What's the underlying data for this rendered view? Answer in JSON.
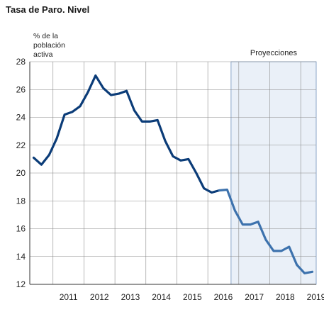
{
  "chart_data": {
    "type": "line",
    "title": "Tasa de Paro. Nivel",
    "ylabel": "% de la\npoblación\nactiva",
    "xlabel": "",
    "ylim": [
      12,
      28
    ],
    "yticks": [
      12,
      14,
      16,
      18,
      20,
      22,
      24,
      26,
      28
    ],
    "xlim": [
      2010.25,
      2019.5
    ],
    "xtick_labels": [
      "2011",
      "2012",
      "2013",
      "2014",
      "2015",
      "2016",
      "2017",
      "2018",
      "2019"
    ],
    "grid": true,
    "projection": {
      "label": "Proyecciones",
      "start": 2016.75,
      "end": 2019.5,
      "fill": "#eaf0f8"
    },
    "series": [
      {
        "color": "#0b3c78",
        "points": [
          [
            2010.375,
            21.1
          ],
          [
            2010.625,
            20.6
          ],
          [
            2010.875,
            21.3
          ],
          [
            2011.125,
            22.5
          ],
          [
            2011.375,
            24.2
          ],
          [
            2011.625,
            24.4
          ],
          [
            2011.875,
            24.8
          ],
          [
            2012.125,
            25.8
          ],
          [
            2012.375,
            27.0
          ],
          [
            2012.625,
            26.1
          ],
          [
            2012.875,
            25.6
          ],
          [
            2013.125,
            25.7
          ],
          [
            2013.375,
            25.9
          ],
          [
            2013.625,
            24.5
          ],
          [
            2013.875,
            23.7
          ],
          [
            2014.125,
            23.7
          ],
          [
            2014.375,
            23.8
          ],
          [
            2014.625,
            22.3
          ],
          [
            2014.875,
            21.2
          ],
          [
            2015.125,
            20.9
          ],
          [
            2015.375,
            21.0
          ],
          [
            2015.625,
            20.0
          ],
          [
            2015.875,
            18.9
          ],
          [
            2016.125,
            18.6
          ],
          [
            2016.375,
            18.75
          ]
        ]
      },
      {
        "color": "#3d72ad",
        "points": [
          [
            2016.375,
            18.75
          ],
          [
            2016.625,
            18.8
          ],
          [
            2016.875,
            17.3
          ],
          [
            2017.125,
            16.3
          ],
          [
            2017.375,
            16.3
          ],
          [
            2017.625,
            16.5
          ],
          [
            2017.875,
            15.2
          ],
          [
            2018.125,
            14.4
          ],
          [
            2018.375,
            14.4
          ],
          [
            2018.625,
            14.7
          ],
          [
            2018.875,
            13.4
          ],
          [
            2019.125,
            12.8
          ],
          [
            2019.375,
            12.9
          ]
        ]
      }
    ]
  }
}
